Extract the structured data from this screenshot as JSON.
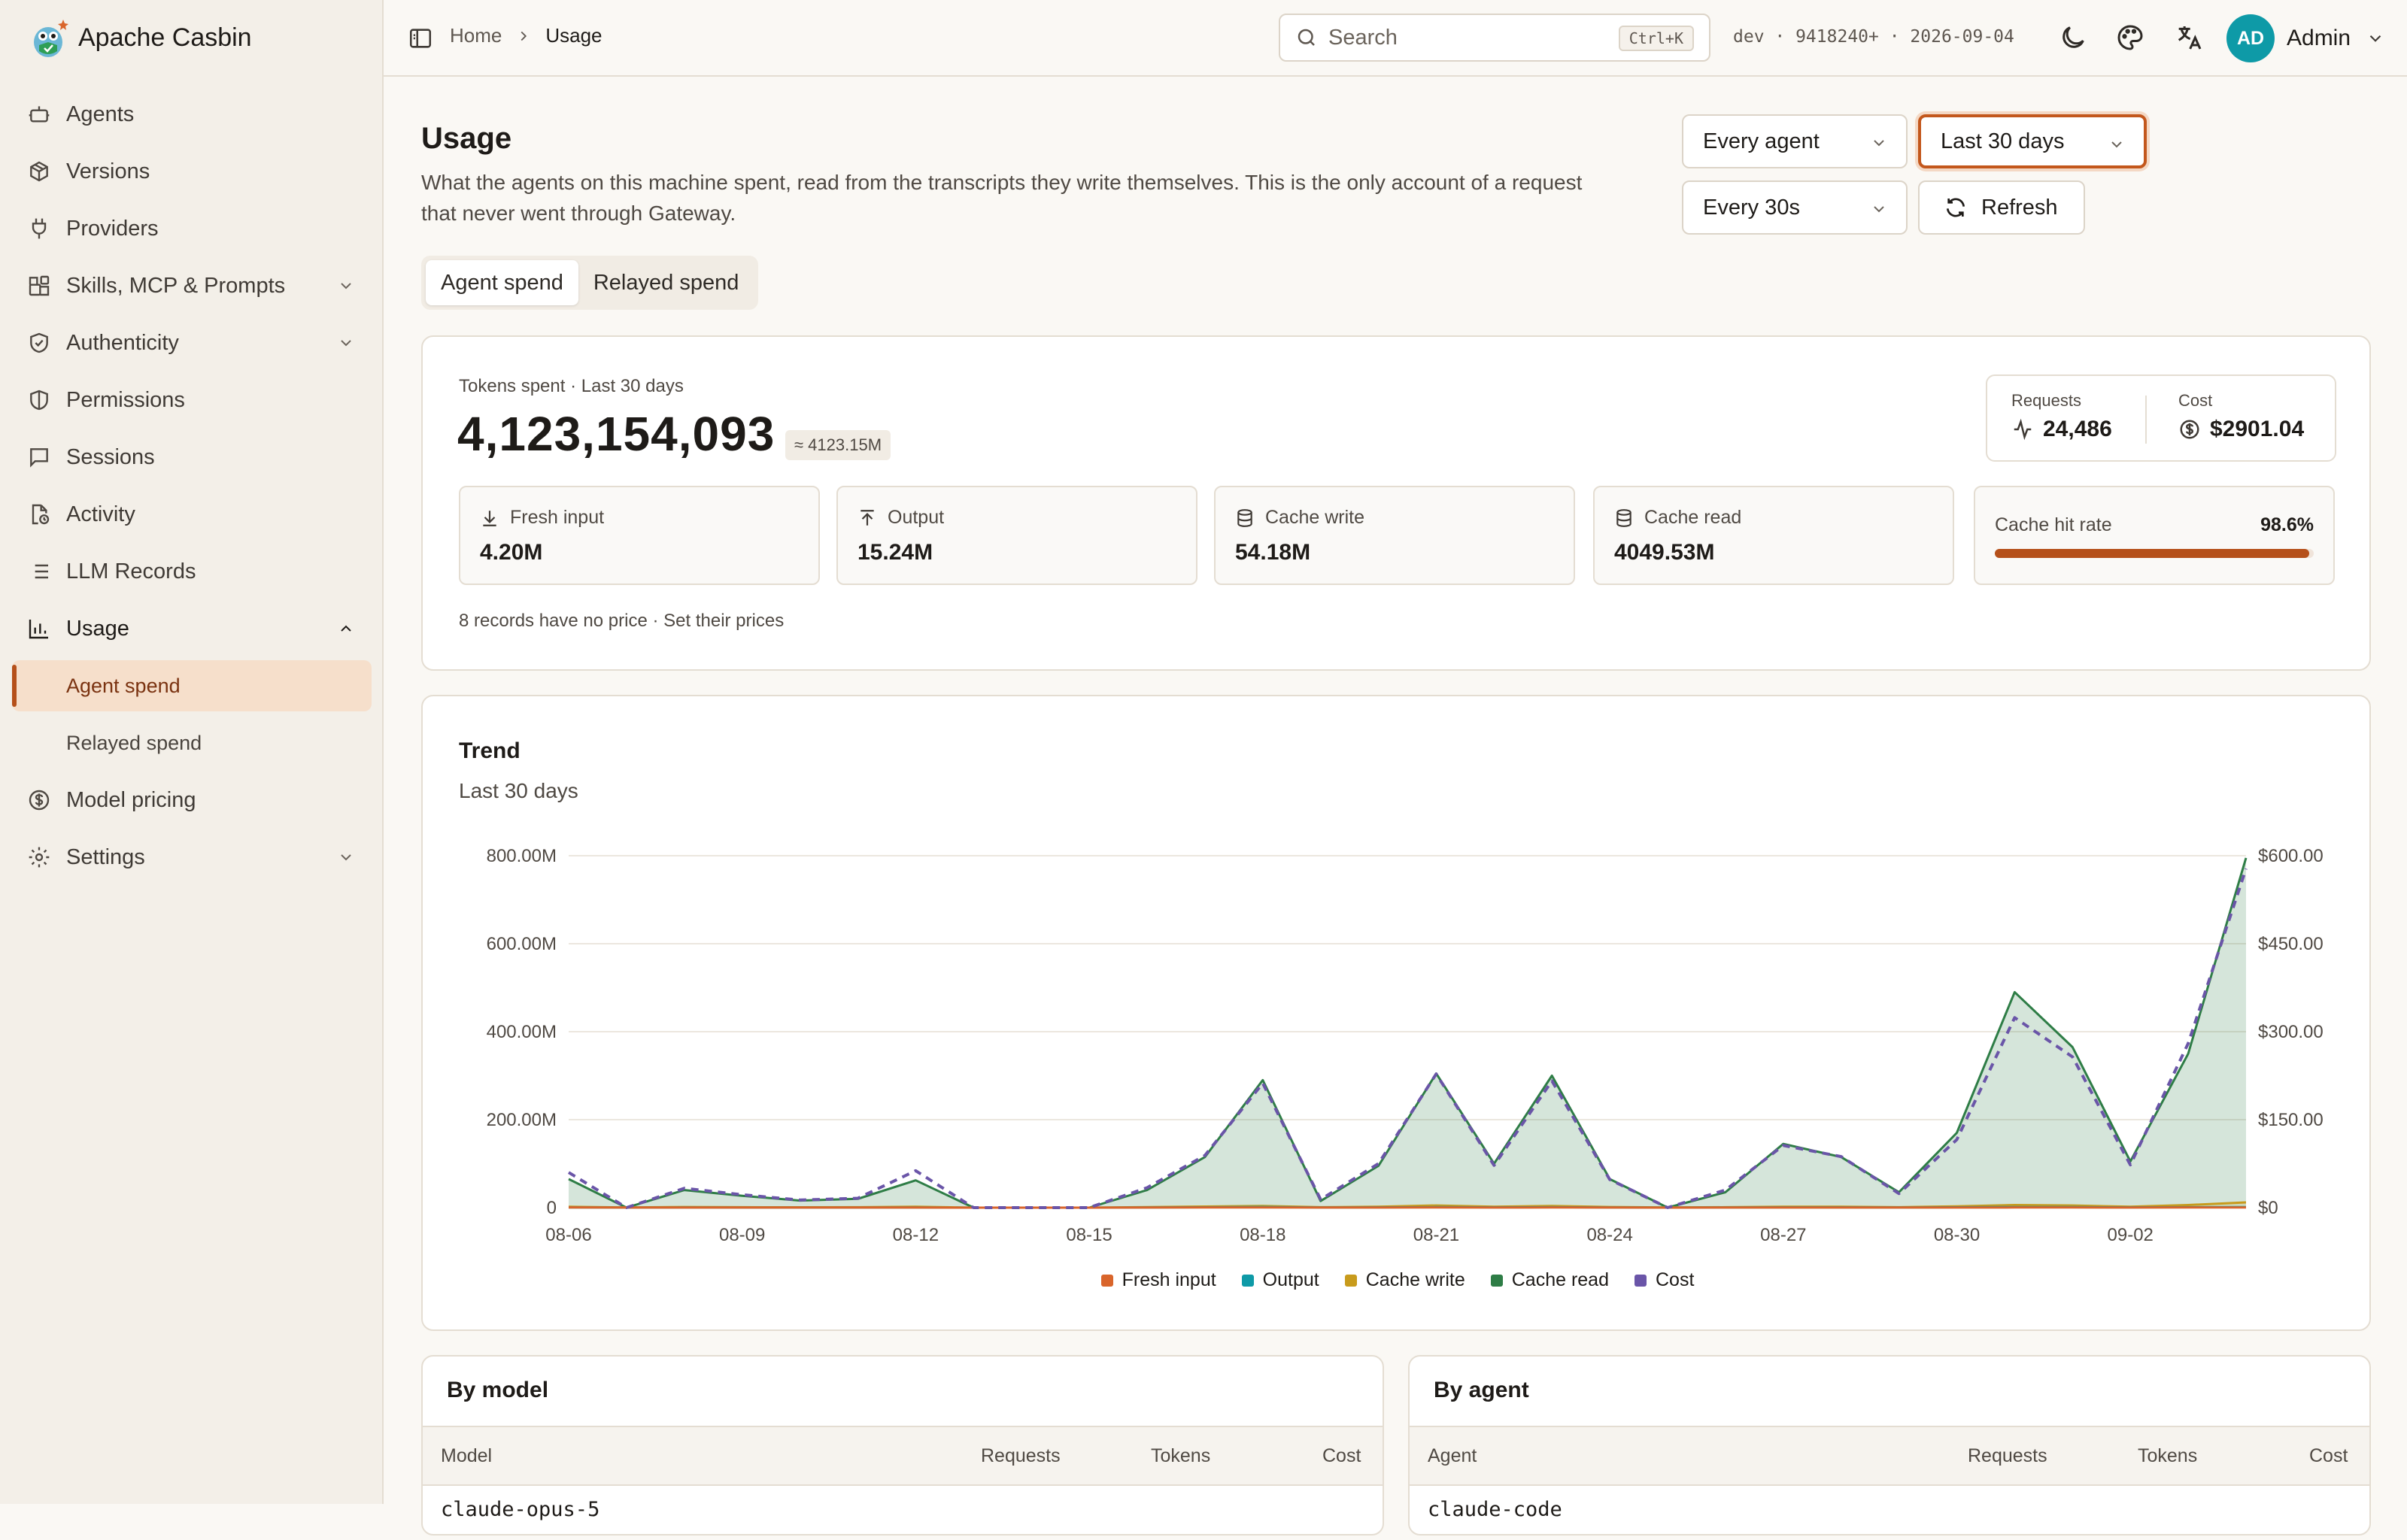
{
  "brand": {
    "name": "Apache Casbin"
  },
  "sidebar": {
    "items": [
      {
        "label": "Agents",
        "icon": "bot-icon"
      },
      {
        "label": "Versions",
        "icon": "package-icon"
      },
      {
        "label": "Providers",
        "icon": "plug-icon"
      },
      {
        "label": "Skills, MCP & Prompts",
        "icon": "blocks-icon"
      },
      {
        "label": "Authenticity",
        "icon": "shield-check-icon"
      },
      {
        "label": "Permissions",
        "icon": "shield-half-icon"
      },
      {
        "label": "Sessions",
        "icon": "message-square-icon"
      },
      {
        "label": "Activity",
        "icon": "file-clock-icon"
      },
      {
        "label": "LLM Records",
        "icon": "list-icon"
      },
      {
        "label": "Usage",
        "icon": "bar-chart-icon"
      },
      {
        "label": "Model pricing",
        "icon": "dollar-circle-icon"
      },
      {
        "label": "Settings",
        "icon": "gear-icon"
      }
    ],
    "usage_sub": [
      {
        "label": "Agent spend"
      },
      {
        "label": "Relayed spend"
      }
    ]
  },
  "topbar": {
    "breadcrumb": {
      "home": "Home",
      "current": "Usage"
    },
    "search": {
      "placeholder": "Search",
      "shortcut": "Ctrl+K"
    },
    "build": "dev · 9418240+ · 2026-09-04",
    "user": {
      "initials": "AD",
      "name": "Admin"
    }
  },
  "header": {
    "title": "Usage",
    "description": "What the agents on this machine spent, read from the transcripts they write themselves. This is the only account of a request that never went through Gateway.",
    "agent_filter": "Every agent",
    "range_filter": "Last 30 days",
    "interval_filter": "Every 30s",
    "refresh_label": "Refresh"
  },
  "tabs": [
    {
      "label": "Agent spend"
    },
    {
      "label": "Relayed spend"
    }
  ],
  "summary": {
    "tokens_label": "Tokens spent · Last 30 days",
    "tokens_total": "4,123,154,093",
    "tokens_approx": "≈ 4123.15M",
    "requests_label": "Requests",
    "requests_value": "24,486",
    "cost_label": "Cost",
    "cost_value": "$2901.04",
    "metrics": [
      {
        "label": "Fresh input",
        "value": "4.20M",
        "icon": "download-icon"
      },
      {
        "label": "Output",
        "value": "15.24M",
        "icon": "upload-icon"
      },
      {
        "label": "Cache write",
        "value": "54.18M",
        "icon": "database-icon"
      },
      {
        "label": "Cache read",
        "value": "4049.53M",
        "icon": "database-icon"
      }
    ],
    "cache_hit": {
      "label": "Cache hit rate",
      "value": "98.6%",
      "fraction": 0.986
    },
    "no_price_note": "8 records have no price · Set their prices"
  },
  "trend": {
    "title": "Trend",
    "subtitle": "Last 30 days"
  },
  "chart_data": {
    "type": "area",
    "x": [
      "08-06",
      "08-07",
      "08-08",
      "08-09",
      "08-10",
      "08-11",
      "08-12",
      "08-13",
      "08-14",
      "08-15",
      "08-16",
      "08-17",
      "08-18",
      "08-19",
      "08-20",
      "08-21",
      "08-22",
      "08-23",
      "08-24",
      "08-25",
      "08-26",
      "08-27",
      "08-28",
      "08-29",
      "08-30",
      "08-31",
      "09-01",
      "09-02",
      "09-03",
      "09-04"
    ],
    "x_tick_labels": [
      "08-06",
      "08-09",
      "08-12",
      "08-15",
      "08-18",
      "08-21",
      "08-24",
      "08-27",
      "08-30",
      "09-02"
    ],
    "y_left": {
      "ticks": [
        "0",
        "200.00M",
        "400.00M",
        "600.00M",
        "800.00M"
      ],
      "range": [
        0,
        800
      ]
    },
    "y_right": {
      "ticks": [
        "$0",
        "$150.00",
        "$300.00",
        "$450.00",
        "$600.00"
      ],
      "range": [
        0,
        600
      ]
    },
    "series": [
      {
        "name": "Fresh input",
        "color": "#d9652b",
        "values": [
          0.3,
          0.1,
          0.2,
          0.1,
          0.1,
          0.1,
          0.2,
          0,
          0,
          0,
          0.2,
          0.3,
          0.4,
          0.1,
          0.2,
          0.3,
          0.2,
          0.3,
          0.1,
          0,
          0.1,
          0.2,
          0.2,
          0.1,
          0.2,
          0.3,
          0.3,
          0.2,
          0.3,
          0.4
        ]
      },
      {
        "name": "Output",
        "color": "#0e9aa7",
        "values": [
          0.5,
          0.1,
          0.3,
          0.2,
          0.2,
          0.2,
          0.4,
          0,
          0,
          0,
          0.4,
          0.8,
          1.5,
          0.3,
          0.6,
          1.2,
          0.7,
          1.1,
          0.5,
          0.1,
          0.4,
          0.6,
          0.6,
          0.3,
          0.8,
          1.3,
          1.2,
          0.6,
          1.0,
          1.4
        ]
      },
      {
        "name": "Cache write",
        "color": "#c89b1c",
        "values": [
          2,
          0.5,
          1.5,
          1,
          0.8,
          1,
          2,
          0,
          0,
          0,
          1.2,
          2.5,
          4,
          1,
          2,
          5,
          2,
          4,
          1.5,
          0.3,
          1,
          2,
          2,
          1,
          3,
          6,
          5,
          2,
          6,
          12
        ]
      },
      {
        "name": "Cache read",
        "color": "#2e7d46",
        "values": [
          65,
          0,
          40,
          27,
          16,
          20,
          62,
          0,
          0,
          0,
          40,
          115,
          290,
          15,
          95,
          305,
          100,
          300,
          65,
          0,
          35,
          145,
          115,
          35,
          170,
          490,
          365,
          105,
          350,
          795
        ]
      },
      {
        "name": "Cost",
        "color": "#6a55a8",
        "axis": "right",
        "values": [
          60,
          0,
          33,
          22,
          13,
          16,
          63,
          0,
          0,
          0,
          34,
          89,
          212,
          14,
          75,
          228,
          72,
          216,
          48,
          0,
          30,
          106,
          87,
          24,
          116,
          324,
          257,
          73,
          280,
          578
        ]
      }
    ],
    "legend_position": "bottom"
  },
  "tables": {
    "by_model": {
      "title": "By model",
      "columns": [
        "Model",
        "Requests",
        "Tokens",
        "Cost"
      ],
      "first_row": "claude-opus-5"
    },
    "by_agent": {
      "title": "By agent",
      "columns": [
        "Agent",
        "Requests",
        "Tokens",
        "Cost"
      ],
      "first_row": "claude-code"
    }
  }
}
